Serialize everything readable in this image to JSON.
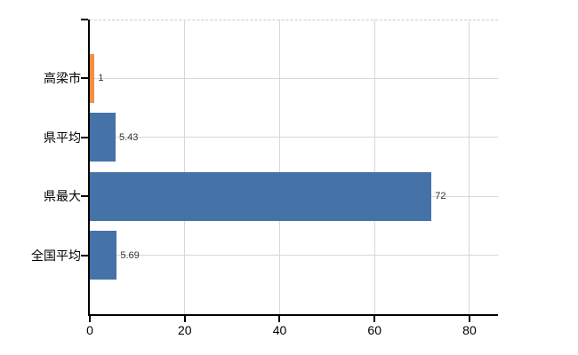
{
  "chart_data": {
    "type": "bar",
    "orientation": "horizontal",
    "title": "",
    "xlabel": "",
    "ylabel": "",
    "categories": [
      "高梁市",
      "県平均",
      "県最大",
      "全国平均"
    ],
    "values": [
      1,
      5.43,
      72,
      5.69
    ],
    "value_labels": [
      "1",
      "5.43",
      "72",
      "5.69"
    ],
    "bar_colors": [
      "#f28f43",
      "#4572a7",
      "#4572a7",
      "#4572a7"
    ],
    "x_ticks": [
      0,
      20,
      40,
      60,
      80
    ],
    "x_tick_labels": [
      "0",
      "20",
      "40",
      "60",
      "80"
    ],
    "xlim": [
      0,
      86
    ],
    "grid": true,
    "legend_position": "none",
    "colors": {
      "highlight_bar": "#f28f43",
      "default_bar": "#4572a7",
      "axis": "#000000",
      "vertical_gridline": "#d7d7d7",
      "horizontal_gridline": "#d5dbcd",
      "top_border": "#c9c9c9",
      "value_label_text": "#333333",
      "axis_label_text": "#000000",
      "background": "#ffffff"
    }
  }
}
